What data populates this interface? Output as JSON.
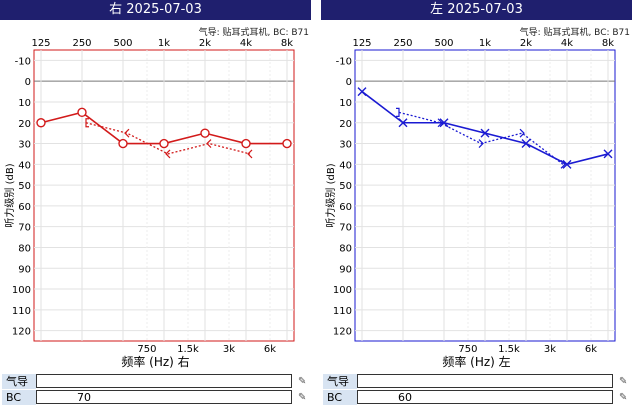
{
  "subtitle": "气导: 贴耳式耳机, BC: B71",
  "panels": [
    {
      "title": "右 2025-07-03",
      "xlabel": "频率 (Hz) 右",
      "color": "#d21a1a",
      "table": [
        {
          "label": "气导",
          "value": ""
        },
        {
          "label": "BC",
          "value": "70"
        }
      ]
    },
    {
      "title": "左 2025-07-03",
      "xlabel": "频率 (Hz) 左",
      "color": "#1a1ad2",
      "table": [
        {
          "label": "气导",
          "value": ""
        },
        {
          "label": "BC",
          "value": "60"
        }
      ]
    }
  ],
  "chart_data": [
    {
      "type": "line",
      "title": "右 2025-07-03",
      "xlabel": "频率 (Hz) 右",
      "ylabel": "听力级别 (dB)",
      "x_top_ticks": [
        "125",
        "250",
        "500",
        "1k",
        "2k",
        "4k",
        "8k"
      ],
      "x_bottom_ticks": [
        "750",
        "1.5k",
        "3k",
        "6k"
      ],
      "y_ticks": [
        -10,
        0,
        10,
        20,
        30,
        40,
        50,
        60,
        70,
        80,
        90,
        100,
        110,
        120
      ],
      "ylim": [
        -15,
        125
      ],
      "y_inverted": true,
      "series": [
        {
          "style": "solid",
          "marker": "O",
          "points": [
            [
              125,
              20
            ],
            [
              250,
              15
            ],
            [
              500,
              30
            ],
            [
              1000,
              30
            ],
            [
              2000,
              25
            ],
            [
              4000,
              30
            ],
            [
              8000,
              30
            ]
          ]
        },
        {
          "style": "dotted",
          "marker": "<",
          "points": [
            [
              250,
              20
            ],
            [
              500,
              25
            ],
            [
              1000,
              35
            ],
            [
              2000,
              30
            ],
            [
              4000,
              35
            ]
          ]
        }
      ]
    },
    {
      "type": "line",
      "title": "左 2025-07-03",
      "xlabel": "频率 (Hz) 左",
      "ylabel": "听力级别 (dB)",
      "x_top_ticks": [
        "125",
        "250",
        "500",
        "1k",
        "2k",
        "4k",
        "8k"
      ],
      "x_bottom_ticks": [
        "750",
        "1.5k",
        "3k",
        "6k"
      ],
      "y_ticks": [
        -10,
        0,
        10,
        20,
        30,
        40,
        50,
        60,
        70,
        80,
        90,
        100,
        110,
        120
      ],
      "ylim": [
        -15,
        125
      ],
      "y_inverted": true,
      "series": [
        {
          "style": "solid",
          "marker": "X",
          "points": [
            [
              125,
              5
            ],
            [
              250,
              20
            ],
            [
              500,
              20
            ],
            [
              1000,
              25
            ],
            [
              2000,
              30
            ],
            [
              4000,
              40
            ],
            [
              8000,
              35
            ]
          ]
        },
        {
          "style": "dotted",
          "marker": ">",
          "points": [
            [
              250,
              15
            ],
            [
              500,
              20
            ],
            [
              1000,
              30
            ],
            [
              2000,
              25
            ],
            [
              4000,
              40
            ]
          ]
        }
      ]
    }
  ]
}
